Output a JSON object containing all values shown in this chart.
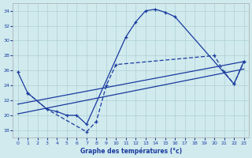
{
  "title": "Graphe des températures (°c)",
  "background_color": "#d0eaee",
  "grid_color": "#b0d0d4",
  "line_color": "#1a3a9e",
  "xlim": [
    -0.5,
    23.5
  ],
  "ylim": [
    17,
    35
  ],
  "yticks": [
    18,
    20,
    22,
    24,
    26,
    28,
    30,
    32,
    34
  ],
  "xticks": [
    0,
    1,
    2,
    3,
    4,
    5,
    6,
    7,
    8,
    9,
    10,
    11,
    12,
    13,
    14,
    15,
    16,
    17,
    18,
    19,
    20,
    21,
    22,
    23
  ],
  "line1_x": [
    0,
    1,
    3,
    4,
    5,
    6,
    7,
    11,
    12,
    13,
    14,
    15,
    16,
    22,
    23
  ],
  "line1_y": [
    25.8,
    23.0,
    20.8,
    20.5,
    20.0,
    20.0,
    18.8,
    30.5,
    32.5,
    34.0,
    34.2,
    33.8,
    33.2,
    24.2,
    27.2
  ],
  "line2_x": [
    1,
    3,
    7,
    8,
    9,
    10,
    20,
    21,
    22,
    23
  ],
  "line2_y": [
    23.0,
    20.8,
    17.8,
    19.2,
    24.0,
    26.8,
    28.0,
    25.8,
    24.2,
    27.2
  ],
  "trend1_x": [
    0,
    23
  ],
  "trend1_y": [
    21.5,
    27.2
  ],
  "trend2_x": [
    0,
    23
  ],
  "trend2_y": [
    20.2,
    26.2
  ]
}
